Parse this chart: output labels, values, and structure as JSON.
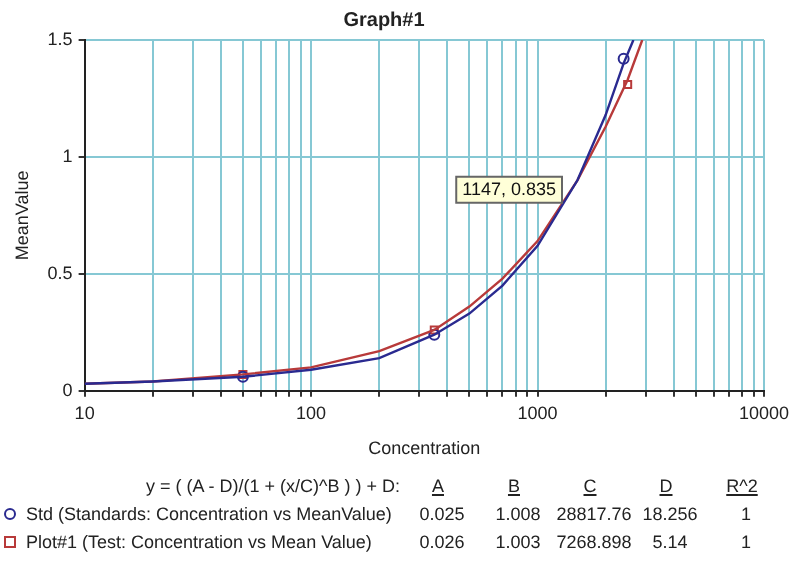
{
  "chart_data": {
    "type": "line",
    "title": "Graph#1",
    "xlabel": "Concentration",
    "ylabel": "MeanValue",
    "log": "x",
    "xlim": [
      10,
      10000
    ],
    "ylim": [
      0,
      1.5
    ],
    "xticks": [
      10,
      {
        "value": 20,
        "label": null
      },
      {
        "value": 30,
        "label": null
      },
      {
        "value": 40,
        "label": null
      },
      {
        "value": 50,
        "label": null
      },
      {
        "value": 60,
        "label": null
      },
      {
        "value": 70,
        "label": null
      },
      {
        "value": 80,
        "label": null
      },
      {
        "value": 90,
        "label": null
      },
      100,
      {
        "value": 200,
        "label": null
      },
      {
        "value": 300,
        "label": null
      },
      {
        "value": 400,
        "label": null
      },
      {
        "value": 500,
        "label": null
      },
      {
        "value": 600,
        "label": null
      },
      {
        "value": 700,
        "label": null
      },
      {
        "value": 800,
        "label": null
      },
      {
        "value": 900,
        "label": null
      },
      1000,
      {
        "value": 2000,
        "label": null
      },
      {
        "value": 3000,
        "label": null
      },
      {
        "value": 4000,
        "label": null
      },
      {
        "value": 5000,
        "label": null
      },
      {
        "value": 6000,
        "label": null
      },
      {
        "value": 7000,
        "label": null
      },
      {
        "value": 8000,
        "label": null
      },
      {
        "value": 9000,
        "label": null
      },
      10000
    ],
    "yticks": [
      0,
      0.5,
      1,
      1.5
    ],
    "grid": true,
    "legend": "bottom",
    "series": [
      {
        "color": "#2a2a90",
        "marker": "none",
        "x": [
          10,
          20,
          50,
          100,
          200,
          350,
          500,
          700,
          1000,
          1500,
          2000,
          2400,
          2650
        ],
        "values": [
          0.03,
          0.04,
          0.06,
          0.09,
          0.14,
          0.24,
          0.33,
          0.45,
          0.62,
          0.9,
          1.18,
          1.4,
          1.5
        ]
      },
      {
        "color": "#b83a3a",
        "marker": "none",
        "x": [
          10,
          20,
          50,
          100,
          200,
          350,
          500,
          700,
          1000,
          1500,
          2000,
          2500,
          2900
        ],
        "values": [
          0.03,
          0.04,
          0.07,
          0.1,
          0.17,
          0.26,
          0.36,
          0.48,
          0.64,
          0.9,
          1.13,
          1.33,
          1.5
        ]
      },
      {
        "type": "scatter",
        "name": "Std (Standards: Concentration vs MeanValue)",
        "color": "#2a2a90",
        "marker": "circle",
        "x": [
          50,
          350,
          2400
        ],
        "values": [
          0.06,
          0.24,
          1.42
        ]
      },
      {
        "type": "scatter",
        "name": "Plot#1 (Test: Concentration vs Mean Value)",
        "color": "#b83a3a",
        "marker": "square",
        "x": [
          50,
          350,
          2500
        ],
        "values": [
          0.07,
          0.26,
          1.31
        ]
      }
    ],
    "annotations": [
      "1147, 0.835",
      "y = ( (A - D)/(1 + (x/C)^B ) ) + D:",
      "A",
      "B",
      "C",
      "D",
      "R^2",
      "0.025",
      "1.008",
      "28817.76",
      "18.256",
      "1",
      "0.026",
      "1.003",
      "7268.898",
      "5.14",
      "1"
    ]
  }
}
